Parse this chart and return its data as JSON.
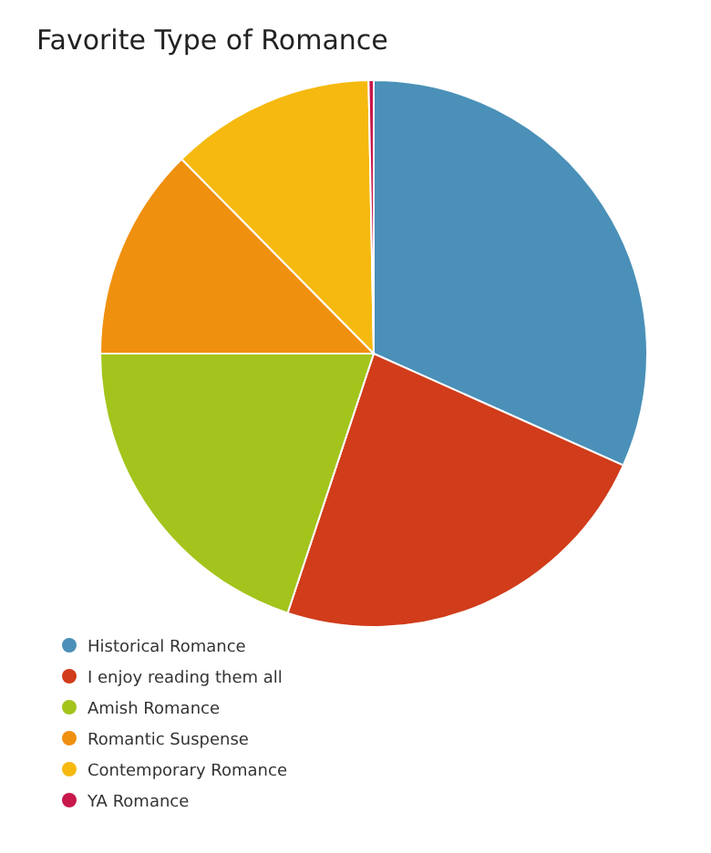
{
  "chart_data": {
    "type": "pie",
    "title": "Favorite Type of Romance",
    "categories": [
      "Historical Romance",
      "I enjoy reading them all",
      "Amish Romance",
      "Romantic Suspense",
      "Contemporary Romance",
      "YA Romance"
    ],
    "values": [
      31.7,
      23.4,
      19.9,
      12.6,
      12.1,
      0.3
    ],
    "colors": [
      "#4a90b8",
      "#d13c1a",
      "#a3c41c",
      "#f0900f",
      "#f5b90f",
      "#c8174b"
    ],
    "legend": "bottom left"
  }
}
